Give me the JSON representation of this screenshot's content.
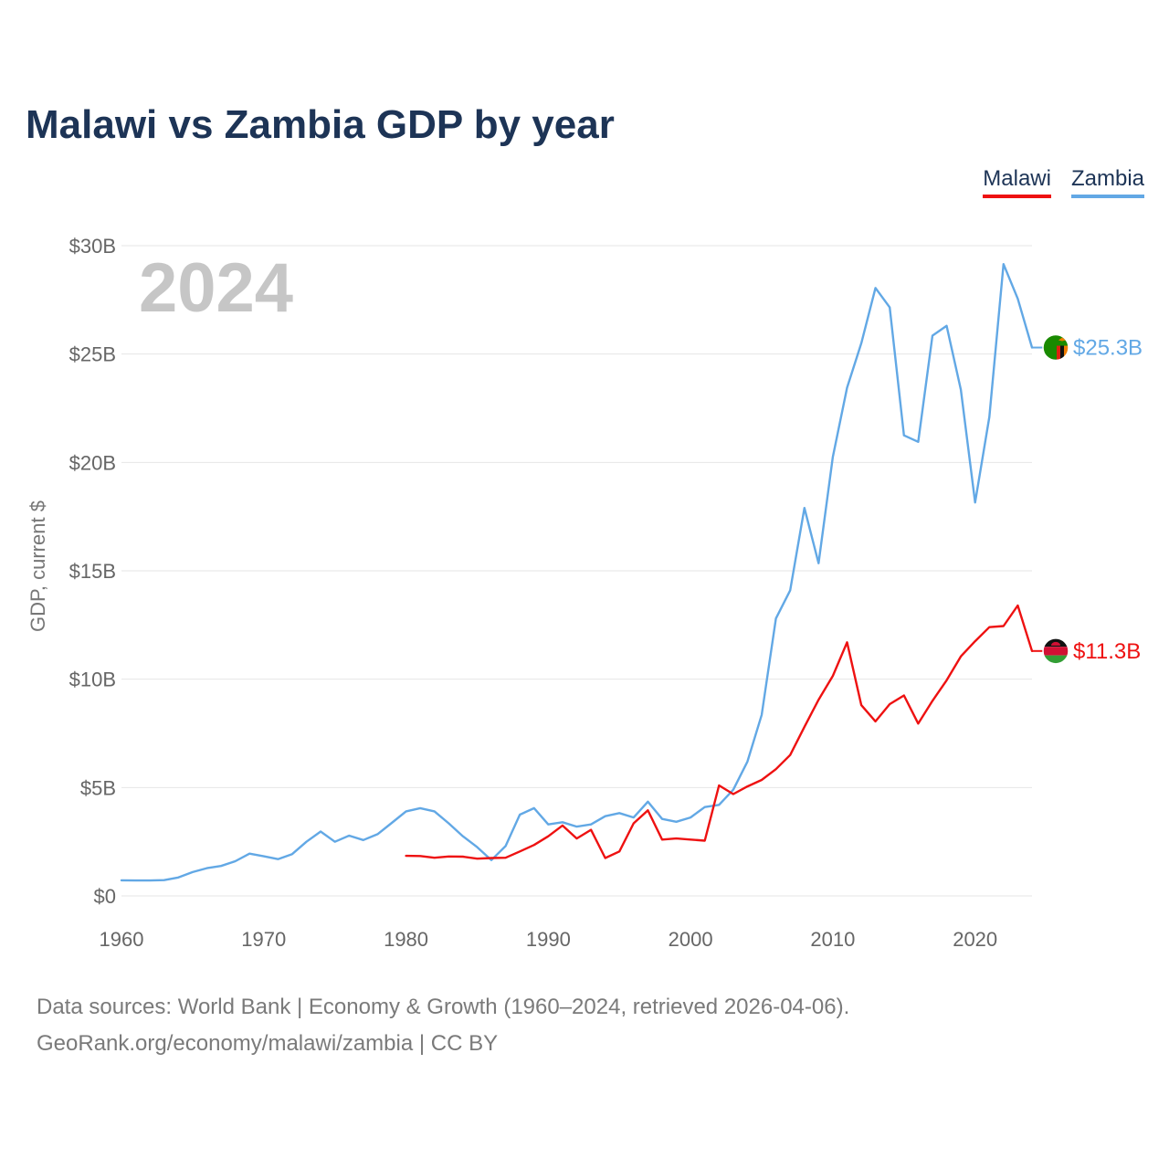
{
  "title": "Malawi vs Zambia GDP by year",
  "legend": [
    {
      "name": "Malawi",
      "color": "#ee1111"
    },
    {
      "name": "Zambia",
      "color": "#62a8e5"
    }
  ],
  "year_overlay": "2024",
  "footer": {
    "line1": "Data sources: World Bank | Economy & Growth (1960–2024, retrieved 2026-04-06).",
    "line2": "GeoRank.org/economy/malawi/zambia | CC BY"
  },
  "chart_data": {
    "type": "line",
    "title": "Malawi vs Zambia GDP by year",
    "xlabel": "",
    "ylabel": "GDP, current $",
    "xlim": [
      1960,
      2024
    ],
    "ylim": [
      0,
      30
    ],
    "y_unit": "billions USD",
    "x_ticks": [
      1960,
      1970,
      1980,
      1990,
      2000,
      2010,
      2020
    ],
    "x_tick_labels": [
      "1960",
      "1970",
      "1980",
      "1990",
      "2000",
      "2010",
      "2020"
    ],
    "y_ticks": [
      0,
      5,
      10,
      15,
      20,
      25,
      30
    ],
    "y_tick_labels": [
      "$0",
      "$5B",
      "$10B",
      "$15B",
      "$20B",
      "$25B",
      "$30B"
    ],
    "grid": true,
    "legend_position": "top-right",
    "series": [
      {
        "name": "Malawi",
        "color": "#ee1111",
        "end_label": "$11.3B",
        "flag": "malawi-flag",
        "x": [
          1980,
          1981,
          1982,
          1983,
          1984,
          1985,
          1986,
          1987,
          1988,
          1989,
          1990,
          1991,
          1992,
          1993,
          1994,
          1995,
          1996,
          1997,
          1998,
          1999,
          2000,
          2001,
          2002,
          2003,
          2004,
          2005,
          2006,
          2007,
          2008,
          2009,
          2010,
          2011,
          2012,
          2013,
          2014,
          2015,
          2016,
          2017,
          2018,
          2019,
          2020,
          2021,
          2022,
          2023,
          2024
        ],
        "values": [
          1.85,
          1.84,
          1.76,
          1.82,
          1.81,
          1.72,
          1.75,
          1.76,
          2.05,
          2.35,
          2.75,
          3.25,
          2.65,
          3.05,
          1.75,
          2.05,
          3.35,
          3.95,
          2.6,
          2.65,
          2.6,
          2.55,
          5.1,
          4.7,
          5.05,
          5.35,
          5.85,
          6.5,
          7.8,
          9.05,
          10.15,
          11.7,
          8.8,
          8.05,
          8.85,
          9.25,
          7.95,
          9.0,
          9.95,
          11.05,
          11.75,
          12.4,
          12.45,
          13.4,
          11.3
        ]
      },
      {
        "name": "Zambia",
        "color": "#62a8e5",
        "end_label": "$25.3B",
        "flag": "zambia-flag",
        "x": [
          1960,
          1961,
          1962,
          1963,
          1964,
          1965,
          1966,
          1967,
          1968,
          1969,
          1970,
          1971,
          1972,
          1973,
          1974,
          1975,
          1976,
          1977,
          1978,
          1979,
          1980,
          1981,
          1982,
          1983,
          1984,
          1985,
          1986,
          1987,
          1988,
          1989,
          1990,
          1991,
          1992,
          1993,
          1994,
          1995,
          1996,
          1997,
          1998,
          1999,
          2000,
          2001,
          2002,
          2003,
          2004,
          2005,
          2006,
          2007,
          2008,
          2009,
          2010,
          2011,
          2012,
          2013,
          2014,
          2015,
          2016,
          2017,
          2018,
          2019,
          2020,
          2021,
          2022,
          2023,
          2024
        ],
        "values": [
          0.72,
          0.71,
          0.71,
          0.73,
          0.85,
          1.1,
          1.28,
          1.38,
          1.6,
          1.95,
          1.83,
          1.7,
          1.93,
          2.5,
          2.97,
          2.5,
          2.78,
          2.58,
          2.85,
          3.37,
          3.9,
          4.05,
          3.9,
          3.35,
          2.75,
          2.25,
          1.65,
          2.3,
          3.75,
          4.05,
          3.3,
          3.4,
          3.2,
          3.3,
          3.68,
          3.82,
          3.62,
          4.35,
          3.55,
          3.42,
          3.62,
          4.1,
          4.2,
          4.9,
          6.2,
          8.35,
          12.8,
          14.1,
          17.9,
          15.35,
          20.25,
          23.45,
          25.5,
          28.05,
          27.15,
          21.25,
          20.95,
          25.85,
          26.3,
          23.35,
          18.15,
          22.1,
          29.15,
          27.55,
          25.3
        ]
      }
    ]
  }
}
